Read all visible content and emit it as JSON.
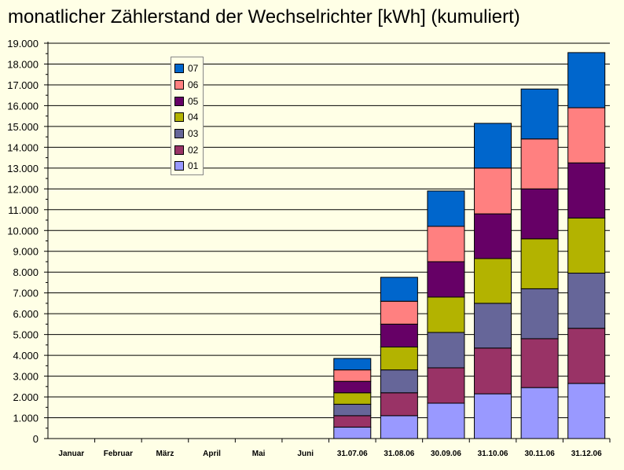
{
  "chart_data": {
    "type": "bar",
    "stacked": true,
    "title": "monatlicher Zählerstand der Wechselrichter [kWh] (kumuliert)",
    "categories": [
      "Januar",
      "Februar",
      "März",
      "April",
      "Mai",
      "Juni",
      "31.07.06",
      "31.08.06",
      "30.09.06",
      "31.10.06",
      "30.11.06",
      "31.12.06"
    ],
    "series": [
      {
        "name": "01",
        "color": "#9999ff",
        "values": [
          0,
          0,
          0,
          0,
          0,
          0,
          550,
          1100,
          1700,
          2150,
          2450,
          2650
        ]
      },
      {
        "name": "02",
        "color": "#993366",
        "values": [
          0,
          0,
          0,
          0,
          0,
          0,
          550,
          1100,
          1700,
          2200,
          2350,
          2650
        ]
      },
      {
        "name": "03",
        "color": "#666699",
        "values": [
          0,
          0,
          0,
          0,
          0,
          0,
          550,
          1100,
          1700,
          2150,
          2400,
          2650
        ]
      },
      {
        "name": "04",
        "color": "#b3b300",
        "values": [
          0,
          0,
          0,
          0,
          0,
          0,
          550,
          1100,
          1700,
          2150,
          2400,
          2650
        ]
      },
      {
        "name": "05",
        "color": "#660066",
        "values": [
          0,
          0,
          0,
          0,
          0,
          0,
          550,
          1100,
          1700,
          2150,
          2400,
          2650
        ]
      },
      {
        "name": "06",
        "color": "#ff8080",
        "values": [
          0,
          0,
          0,
          0,
          0,
          0,
          550,
          1100,
          1700,
          2200,
          2400,
          2650
        ]
      },
      {
        "name": "07",
        "color": "#0066cc",
        "values": [
          0,
          0,
          0,
          0,
          0,
          0,
          550,
          1150,
          1700,
          2150,
          2400,
          2650
        ]
      }
    ],
    "yticks": [
      "0",
      "1.000",
      "2.000",
      "3.000",
      "4.000",
      "5.000",
      "6.000",
      "7.000",
      "8.000",
      "9.000",
      "10.000",
      "11.000",
      "12.000",
      "13.000",
      "14.000",
      "15.000",
      "16.000",
      "17.000",
      "18.000",
      "19.000"
    ],
    "ylim": [
      0,
      19000
    ],
    "grid": true,
    "legend_position": "upper-left-inside",
    "legend_order": "reversed",
    "background": "#ffffe6"
  }
}
